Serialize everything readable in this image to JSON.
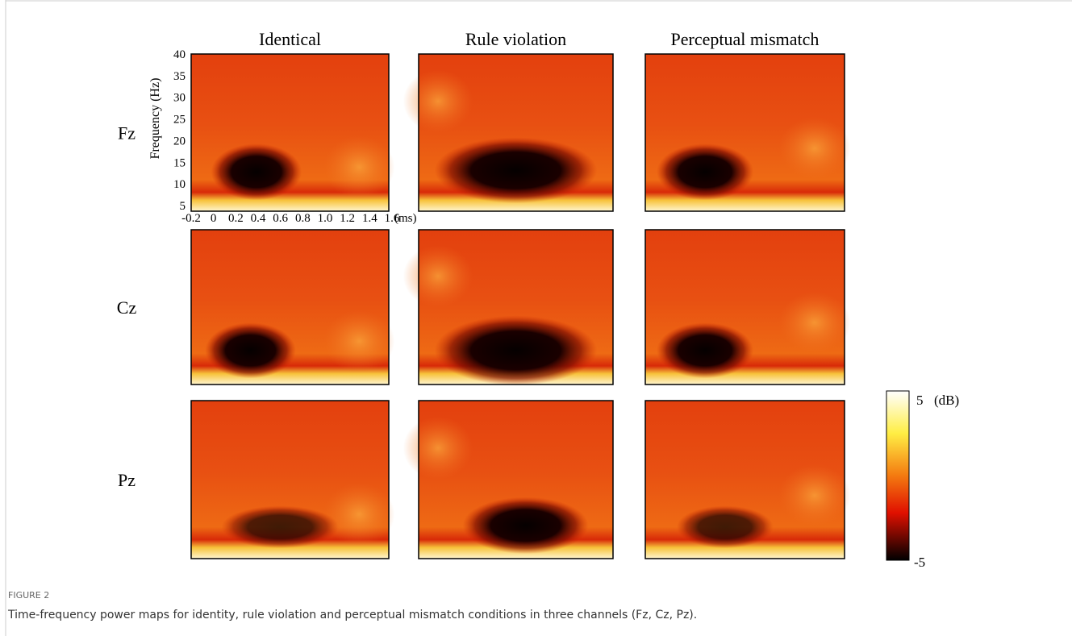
{
  "figure": {
    "column_titles": [
      "Identical",
      "Rule violation",
      "Perceptual mismatch"
    ],
    "row_labels": [
      "Fz",
      "Cz",
      "Pz"
    ],
    "y_axis_label": "Frequency (Hz)",
    "y_ticks": [
      "40",
      "35",
      "30",
      "25",
      "20",
      "15",
      "10",
      "5"
    ],
    "x_ticks": [
      "-0.2",
      "0",
      "0.2",
      "0.4",
      "0.6",
      "0.8",
      "1.0",
      "1.2",
      "1.4",
      "1.6"
    ],
    "x_unit": "(ms)",
    "colorbar": {
      "max": "5",
      "unit": "(dB)",
      "min": "-5"
    }
  },
  "caption": {
    "label": "FIGURE 2",
    "text": "Time-frequency power maps for identity, rule violation and perceptual mismatch conditions in three channels (Fz, Cz, Pz)."
  }
}
